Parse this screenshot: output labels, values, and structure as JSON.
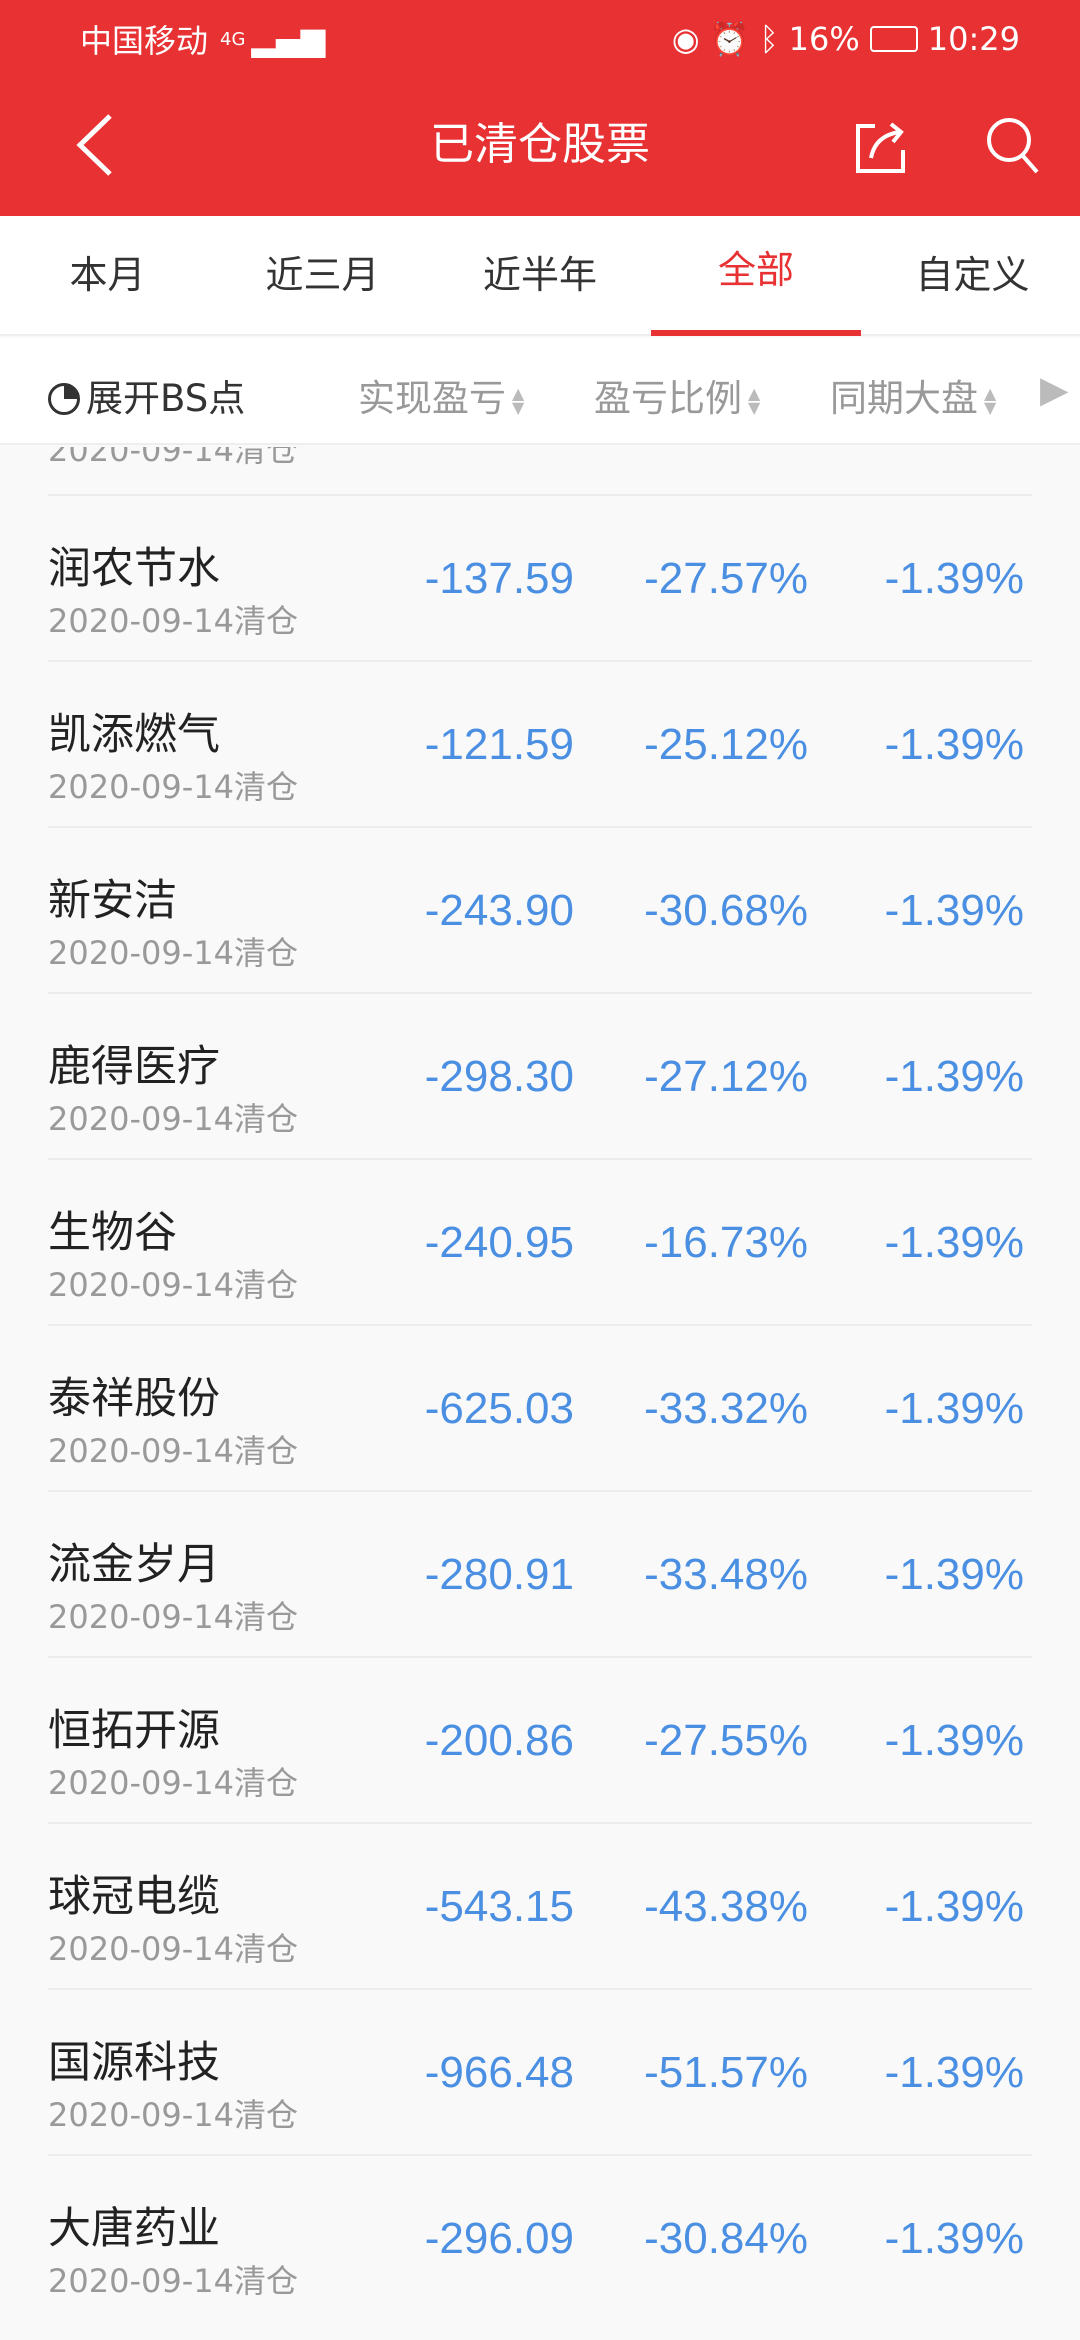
{
  "status": {
    "carrier": "中国移动",
    "network": "4G",
    "battery": "16%",
    "time": "10:29"
  },
  "header": {
    "title": "已清仓股票"
  },
  "tabs": [
    {
      "label": "本月"
    },
    {
      "label": "近三月"
    },
    {
      "label": "近半年"
    },
    {
      "label": "全部",
      "active": true
    },
    {
      "label": "自定义"
    }
  ],
  "columns": {
    "toggle": "展开BS点",
    "c1": "实现盈亏",
    "c2": "盈亏比例",
    "c3": "同期大盘"
  },
  "partial_row": {
    "date": "2020-09-14清仓"
  },
  "rows": [
    {
      "name": "润农节水",
      "date": "2020-09-14清仓",
      "pl": "-137.59",
      "ratio": "-27.57%",
      "market": "-1.39%"
    },
    {
      "name": "凯添燃气",
      "date": "2020-09-14清仓",
      "pl": "-121.59",
      "ratio": "-25.12%",
      "market": "-1.39%"
    },
    {
      "name": "新安洁",
      "date": "2020-09-14清仓",
      "pl": "-243.90",
      "ratio": "-30.68%",
      "market": "-1.39%"
    },
    {
      "name": "鹿得医疗",
      "date": "2020-09-14清仓",
      "pl": "-298.30",
      "ratio": "-27.12%",
      "market": "-1.39%"
    },
    {
      "name": "生物谷",
      "date": "2020-09-14清仓",
      "pl": "-240.95",
      "ratio": "-16.73%",
      "market": "-1.39%"
    },
    {
      "name": "泰祥股份",
      "date": "2020-09-14清仓",
      "pl": "-625.03",
      "ratio": "-33.32%",
      "market": "-1.39%"
    },
    {
      "name": "流金岁月",
      "date": "2020-09-14清仓",
      "pl": "-280.91",
      "ratio": "-33.48%",
      "market": "-1.39%"
    },
    {
      "name": "恒拓开源",
      "date": "2020-09-14清仓",
      "pl": "-200.86",
      "ratio": "-27.55%",
      "market": "-1.39%"
    },
    {
      "name": "球冠电缆",
      "date": "2020-09-14清仓",
      "pl": "-543.15",
      "ratio": "-43.38%",
      "market": "-1.39%"
    },
    {
      "name": "国源科技",
      "date": "2020-09-14清仓",
      "pl": "-966.48",
      "ratio": "-51.57%",
      "market": "-1.39%"
    },
    {
      "name": "大唐药业",
      "date": "2020-09-14清仓",
      "pl": "-296.09",
      "ratio": "-30.84%",
      "market": "-1.39%"
    }
  ],
  "colors": {
    "brand": "#e73133",
    "value": "#4a8fe2"
  }
}
